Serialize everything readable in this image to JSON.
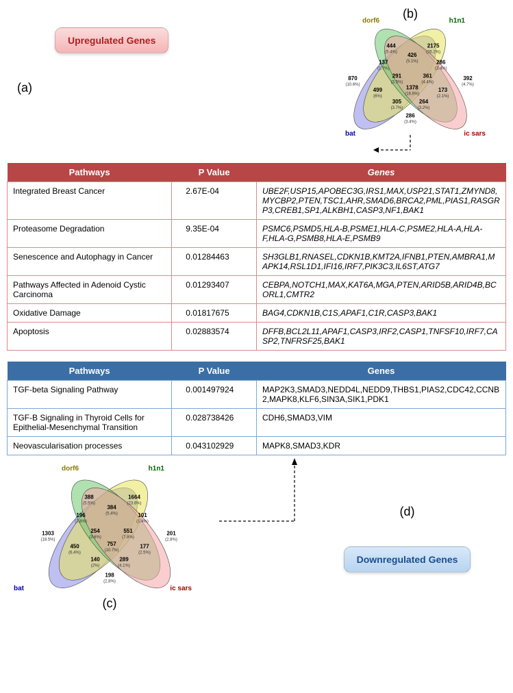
{
  "labels": {
    "a": "(a)",
    "b": "(b)",
    "c": "(c)",
    "d": "(d)"
  },
  "badges": {
    "up": {
      "text": "Upregulated Genes",
      "bg": "linear-gradient(#fbdcdc,#f5b5b5)",
      "color": "#b02020"
    },
    "down": {
      "text": "Downregulated Genes",
      "bg": "linear-gradient(#d8e8fa,#b8d4f0)",
      "color": "#1a4d8f"
    }
  },
  "venn_labels": {
    "dorf6": "dorf6",
    "h1n1": "h1n1",
    "bat": "bat",
    "icsars": "ic sars"
  },
  "venn_colors": {
    "dorf6": "#e8e45a",
    "h1n1": "#6fc96f",
    "bat": "#8a8ae8",
    "icsars": "#f5a6a6",
    "label_dorf6": "#8a7a00",
    "label_h1n1": "#006400",
    "label_bat": "#0000aa",
    "label_icsars": "#aa0000"
  },
  "venn_b": {
    "regions": [
      {
        "k": "A",
        "n": "444",
        "p": "(5.4%)"
      },
      {
        "k": "B",
        "n": "2175",
        "p": "(26.2%)"
      },
      {
        "k": "AB",
        "n": "426",
        "p": "(5.1%)"
      },
      {
        "k": "C",
        "n": "870",
        "p": "(10.6%)"
      },
      {
        "k": "AC",
        "n": "137",
        "p": "(1.7%)"
      },
      {
        "k": "BC",
        "n": "291",
        "p": "(3.5%)"
      },
      {
        "k": "ABC",
        "n": "1378",
        "p": "(16.6%)"
      },
      {
        "k": "D",
        "n": "392",
        "p": "(4.7%)"
      },
      {
        "k": "AD",
        "n": "286",
        "p": "(3.4%)"
      },
      {
        "k": "BD",
        "n": "361",
        "p": "(4.4%)"
      },
      {
        "k": "CD",
        "n": "499",
        "p": "(6%)"
      },
      {
        "k": "ABD",
        "n": "173",
        "p": "(2.1%)"
      },
      {
        "k": "ACD",
        "n": "305",
        "p": "(3.7%)"
      },
      {
        "k": "BCD",
        "n": "264",
        "p": "(3.2%)"
      },
      {
        "k": "CDonly",
        "n": "286",
        "p": "(3.4%)"
      }
    ]
  },
  "venn_c": {
    "regions": [
      {
        "k": "A",
        "n": "388",
        "p": "(5.5%)"
      },
      {
        "k": "B",
        "n": "1664",
        "p": "(23.6%)"
      },
      {
        "k": "AB",
        "n": "384",
        "p": "(5.4%)"
      },
      {
        "k": "C",
        "n": "1303",
        "p": "(18.5%)"
      },
      {
        "k": "AC",
        "n": "196",
        "p": "(2.8%)"
      },
      {
        "k": "BC",
        "n": "254",
        "p": "(3.6%)"
      },
      {
        "k": "ABC",
        "n": "757",
        "p": "(10.7%)"
      },
      {
        "k": "D",
        "n": "201",
        "p": "(2.8%)"
      },
      {
        "k": "AD",
        "n": "101",
        "p": "(1.4%)"
      },
      {
        "k": "BD",
        "n": "551",
        "p": "(7.8%)"
      },
      {
        "k": "CD",
        "n": "450",
        "p": "(6.4%)"
      },
      {
        "k": "ABD",
        "n": "177",
        "p": "(2.5%)"
      },
      {
        "k": "ACD",
        "n": "140",
        "p": "(2%)"
      },
      {
        "k": "BCD",
        "n": "289",
        "p": "(4.1%)"
      },
      {
        "k": "CDonly",
        "n": "198",
        "p": "(2.8%)"
      }
    ]
  },
  "table_headers": {
    "path": "Pathways",
    "pval": "P Value",
    "genes": "Genes"
  },
  "table_up": [
    {
      "path": "Integrated Breast Cancer",
      "pval": "2.67E-04",
      "genes": "UBE2F,USP15,APOBEC3G,IRS1,MAX,USP21,STAT1,ZMYND8,MYCBP2,PTEN,TSC1,AHR,SMAD6,BRCA2,PML,PIAS1,RASGRP3,CREB1,SP1,ALKBH1,CASP3,NF1,BAK1"
    },
    {
      "path": "Proteasome Degradation",
      "pval": "9.35E-04",
      "genes": "PSMC6,PSMD5,HLA-B,PSME1,HLA-C,PSME2,HLA-A,HLA-F,HLA-G,PSMB8,HLA-E,PSMB9"
    },
    {
      "path": "Senescence and Autophagy in Cancer",
      "pval": "0.01284463",
      "genes": "SH3GLB1,RNASEL,CDKN1B,KMT2A,IFNB1,PTEN,AMBRA1,MAPK14,RSL1D1,IFI16,IRF7,PIK3C3,IL6ST,ATG7"
    },
    {
      "path": "Pathways Affected in Adenoid Cystic Carcinoma",
      "pval": "0.01293407",
      "genes": "CEBPA,NOTCH1,MAX,KAT6A,MGA,PTEN,ARID5B,ARID4B,BCORL1,CMTR2"
    },
    {
      "path": "Oxidative Damage",
      "pval": "0.01817675",
      "genes": "BAG4,CDKN1B,C1S,APAF1,C1R,CASP3,BAK1"
    },
    {
      "path": "Apoptosis",
      "pval": "0.02883574",
      "genes": "DFFB,BCL2L11,APAF1,CASP3,IRF2,CASP1,TNFSF10,IRF7,CASP2,TNFRSF25,BAK1"
    }
  ],
  "table_down": [
    {
      "path": "TGF-beta Signaling Pathway",
      "pval": "0.001497924",
      "genes": "MAP2K3,SMAD3,NEDD4L,NEDD9,THBS1,PIAS2,CDC42,CCNB2,MAPK8,KLF6,SIN3A,SIK1,PDK1"
    },
    {
      "path": "TGF-B Signaling in Thyroid Cells for Epithelial-Mesenchymal Transition",
      "pval": "0.028738426",
      "genes": "CDH6,SMAD3,VIM"
    },
    {
      "path": "Neovascularisation processes",
      "pval": "0.043102929",
      "genes": "MAPK8,SMAD3,KDR"
    }
  ]
}
